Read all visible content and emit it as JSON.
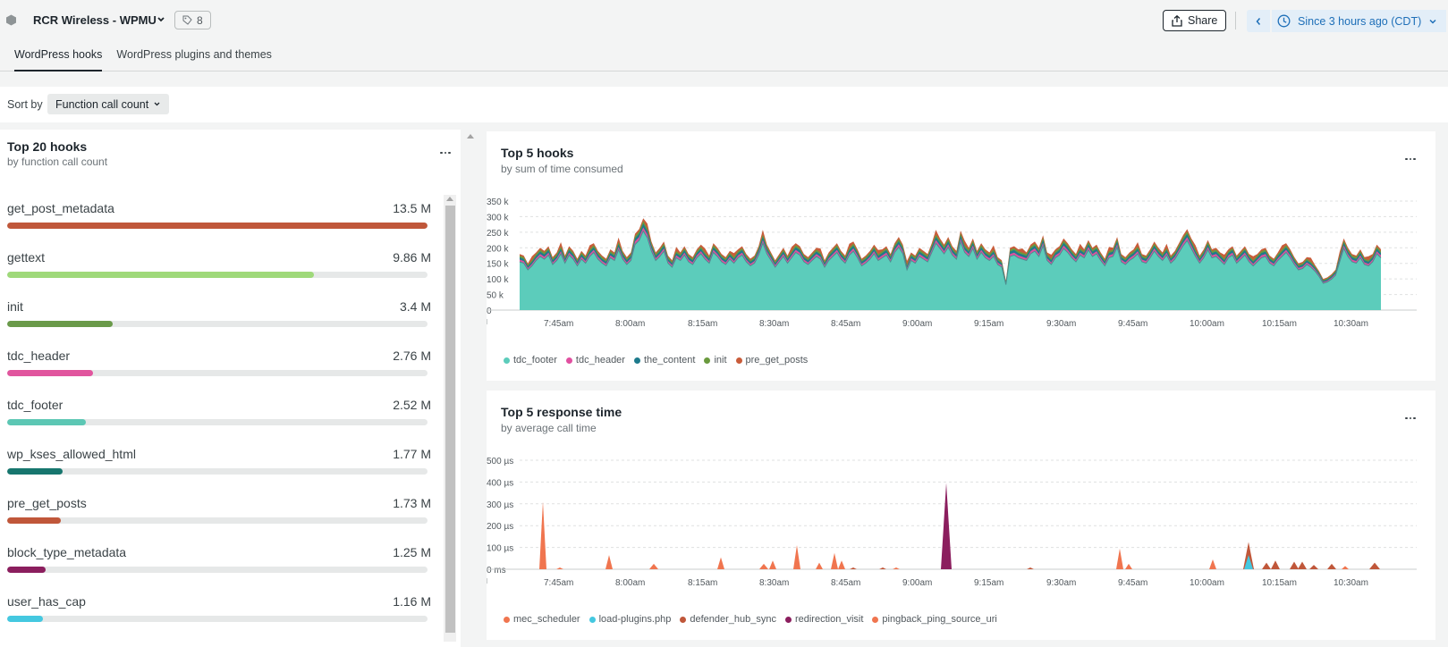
{
  "header": {
    "entity_name": "RCR Wireless - WPMU",
    "tag_count": "8",
    "share_label": "Share",
    "time_range": "Since 3 hours ago (CDT)",
    "tabs": [
      {
        "label": "WordPress hooks",
        "active": true
      },
      {
        "label": "WordPress plugins and themes",
        "active": false
      }
    ]
  },
  "sort": {
    "label": "Sort by",
    "value": "Function call count"
  },
  "top_hooks": {
    "title": "Top 20 hooks",
    "subtitle": "by function call count",
    "items": [
      {
        "name": "get_post_metadata",
        "value": "13.5 M",
        "fraction": 1.0,
        "color": "#c0573a"
      },
      {
        "name": "gettext",
        "value": "9.86 M",
        "fraction": 0.73,
        "color": "#9fd97a"
      },
      {
        "name": "init",
        "value": "3.4 M",
        "fraction": 0.25,
        "color": "#6a9a4a"
      },
      {
        "name": "tdc_header",
        "value": "2.76 M",
        "fraction": 0.205,
        "color": "#e1559e"
      },
      {
        "name": "tdc_footer",
        "value": "2.52 M",
        "fraction": 0.187,
        "color": "#5cc7b4"
      },
      {
        "name": "wp_kses_allowed_html",
        "value": "1.77 M",
        "fraction": 0.131,
        "color": "#17766e"
      },
      {
        "name": "pre_get_posts",
        "value": "1.73 M",
        "fraction": 0.128,
        "color": "#c0573a"
      },
      {
        "name": "block_type_metadata",
        "value": "1.25 M",
        "fraction": 0.092,
        "color": "#8b1e5e"
      },
      {
        "name": "user_has_cap",
        "value": "1.16 M",
        "fraction": 0.086,
        "color": "#44c8e0"
      }
    ]
  },
  "chart_data": [
    {
      "type": "area",
      "title": "Top 5 hooks",
      "subtitle": "by sum of time consumed",
      "x_ticks": [
        "7:45am",
        "8:00am",
        "8:15am",
        "8:30am",
        "8:45am",
        "9:00am",
        "9:15am",
        "9:30am",
        "9:45am",
        "10:00am",
        "10:15am",
        "10:30am"
      ],
      "y_ticks": [
        "350 k",
        "300 k",
        "250 k",
        "200 k",
        "150 k",
        "100 k",
        "50 k",
        "0"
      ],
      "ylim": [
        0,
        350000
      ],
      "series": [
        {
          "name": "tdc_footer",
          "color": "#5cccbb"
        },
        {
          "name": "tdc_header",
          "color": "#e14fa0"
        },
        {
          "name": "the_content",
          "color": "#1d7a8c"
        },
        {
          "name": "init",
          "color": "#6a9a3e"
        },
        {
          "name": "pre_get_posts",
          "color": "#c95c3a"
        }
      ],
      "total_values": [
        180,
        175,
        150,
        165,
        185,
        200,
        190,
        205,
        170,
        185,
        210,
        175,
        205,
        190,
        165,
        190,
        175,
        200,
        215,
        190,
        175,
        165,
        195,
        185,
        225,
        190,
        170,
        185,
        245,
        260,
        295,
        270,
        220,
        185,
        200,
        220,
        175,
        160,
        195,
        185,
        205,
        180,
        170,
        195,
        210,
        190,
        175,
        215,
        200,
        180,
        170,
        190,
        175,
        195,
        205,
        180,
        165,
        175,
        205,
        250,
        210,
        185,
        160,
        180,
        200,
        175,
        195,
        215,
        205,
        180,
        170,
        185,
        200,
        190,
        160,
        185,
        200,
        215,
        190,
        175,
        205,
        220,
        195,
        165,
        175,
        190,
        210,
        185,
        195,
        205,
        180,
        215,
        235,
        210,
        150,
        185,
        175,
        200,
        190,
        180,
        215,
        250,
        230,
        210,
        235,
        205,
        190,
        255,
        215,
        200,
        230,
        190,
        215,
        195,
        185,
        200,
        170,
        160,
        95,
        200,
        205,
        195,
        190,
        185,
        210,
        220,
        200,
        240,
        185,
        170,
        195,
        205,
        230,
        215,
        195,
        180,
        205,
        195,
        225,
        200,
        210,
        185,
        165,
        195,
        200,
        235,
        180,
        170,
        185,
        195,
        210,
        180,
        175,
        195,
        220,
        200,
        185,
        205,
        175,
        190,
        215,
        240,
        260,
        230,
        200,
        175,
        195,
        225,
        195,
        200,
        185,
        170,
        195,
        205,
        175,
        190,
        205,
        180,
        165,
        180,
        195,
        200,
        175,
        165,
        185,
        200,
        215,
        195,
        170,
        150,
        155,
        170,
        160,
        145,
        125,
        100,
        105,
        115,
        130,
        180,
        230,
        200,
        180,
        175,
        195,
        170,
        165,
        180,
        210,
        195
      ]
    },
    {
      "type": "area",
      "title": "Top 5 response time",
      "subtitle": "by average call time",
      "x_ticks": [
        "7:45am",
        "8:00am",
        "8:15am",
        "8:30am",
        "8:45am",
        "9:00am",
        "9:15am",
        "9:30am",
        "9:45am",
        "10:00am",
        "10:15am",
        "10:30am"
      ],
      "y_ticks": [
        "500 µs",
        "400 µs",
        "300 µs",
        "200 µs",
        "100 µs",
        "0 ms"
      ],
      "ylim": [
        0,
        500
      ],
      "series": [
        {
          "name": "mec_scheduler",
          "color": "#f0754f"
        },
        {
          "name": "load-plugins.php",
          "color": "#44c8e0"
        },
        {
          "name": "defender_hub_sync",
          "color": "#c0573a"
        },
        {
          "name": "redirection_visit",
          "color": "#8b1e5e"
        },
        {
          "name": "pingback_ping_source_uri",
          "color": "#f0754f"
        }
      ]
    }
  ]
}
